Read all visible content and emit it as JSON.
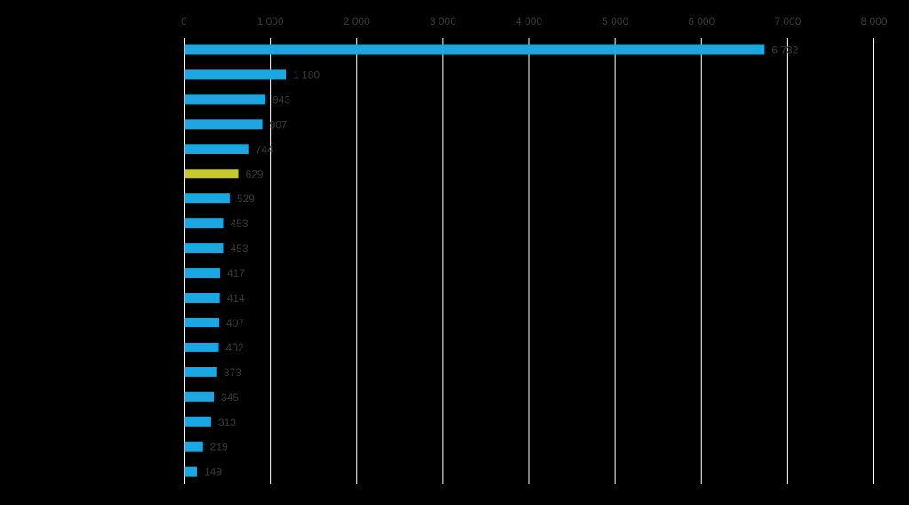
{
  "chart_data": {
    "type": "bar",
    "orientation": "horizontal",
    "categories": [
      "",
      "",
      "",
      "",
      "",
      "",
      "",
      "",
      "",
      "",
      "",
      "",
      "",
      "",
      "",
      "",
      "",
      ""
    ],
    "values": [
      6732,
      1180,
      943,
      907,
      744,
      629,
      529,
      453,
      453,
      417,
      414,
      407,
      402,
      373,
      345,
      313,
      219,
      149
    ],
    "data_labels": [
      "6 732",
      "1 180",
      "943",
      "907",
      "744",
      "629",
      "529",
      "453",
      "453",
      "417",
      "414",
      "407",
      "402",
      "373",
      "345",
      "313",
      "219",
      "149"
    ],
    "highlight_index": 5,
    "xlim": [
      0,
      8000
    ],
    "ticks": [
      0,
      1000,
      2000,
      3000,
      4000,
      5000,
      6000,
      7000,
      8000
    ],
    "tick_labels": [
      "0",
      "1 000",
      "2 000",
      "3 000",
      "4 000",
      "5 000",
      "6 000",
      "7 000",
      "8 000"
    ],
    "axis_position": "top",
    "grid": true,
    "title": "",
    "xlabel": "",
    "ylabel": "",
    "colors": {
      "background": "#000000",
      "bar": "#1aa7e2",
      "highlight": "#c5c82e",
      "grid": "#ffffff",
      "text": "#3a3a3a"
    }
  }
}
